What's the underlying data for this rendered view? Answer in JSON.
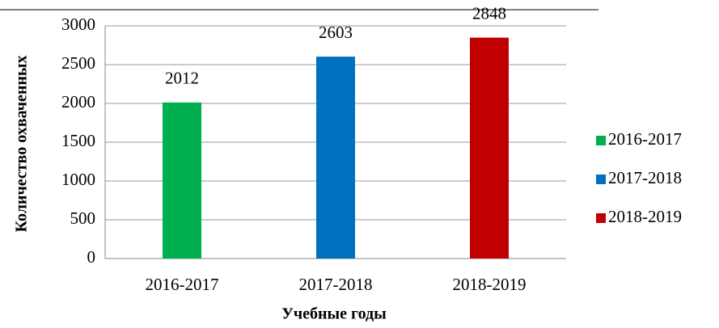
{
  "chart_data": {
    "type": "bar",
    "x_label": "Учебные годы",
    "y_label": "Количество охваченных",
    "categories": [
      "2016-2017",
      "2017-2018",
      "2018-2019"
    ],
    "series": [
      {
        "name": "2016-2017",
        "color": "#00b050",
        "values": [
          2012,
          null,
          null
        ]
      },
      {
        "name": "2017-2018",
        "color": "#0070c0",
        "values": [
          null,
          2603,
          null
        ]
      },
      {
        "name": "2018-2019",
        "color": "#c00000",
        "values": [
          null,
          null,
          2848
        ]
      }
    ],
    "ylim": [
      0,
      3000
    ],
    "yticks": [
      0,
      500,
      1000,
      1500,
      2000,
      2500,
      3000
    ],
    "grid": true,
    "legend": "right"
  }
}
